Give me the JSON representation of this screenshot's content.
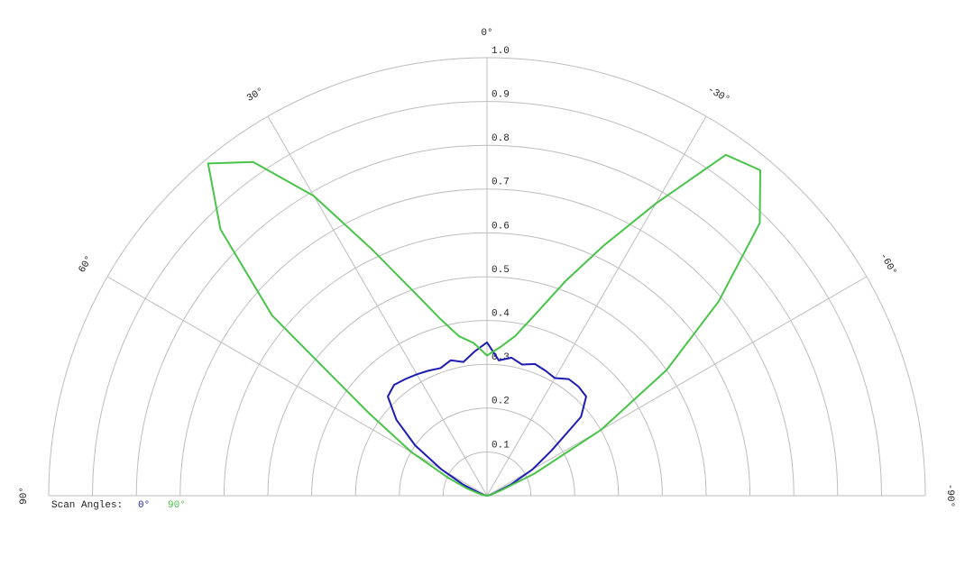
{
  "chart_data": {
    "type": "polar",
    "x": [
      -90,
      -85,
      -80,
      -75,
      -70,
      -65,
      -60,
      -55,
      -50,
      -45,
      -40,
      -35,
      -30,
      -25,
      -20,
      -15,
      -10,
      -5,
      0,
      5,
      10,
      15,
      20,
      25,
      30,
      35,
      40,
      45,
      50,
      55,
      60,
      65,
      70,
      75,
      80,
      85,
      90
    ],
    "series": [
      {
        "name": "0°",
        "color": "#1c1cb4",
        "values": [
          0,
          0,
          0.005,
          0.01,
          0.02,
          0.06,
          0.12,
          0.18,
          0.28,
          0.32,
          0.325,
          0.325,
          0.31,
          0.315,
          0.32,
          0.31,
          0.32,
          0.31,
          0.35,
          0.33,
          0.31,
          0.32,
          0.31,
          0.315,
          0.32,
          0.325,
          0.33,
          0.32,
          0.27,
          0.2,
          0.12,
          0.06,
          0.02,
          0.01,
          0.005,
          0,
          0
        ]
      },
      {
        "name": "90°",
        "color": "#48c448",
        "values": [
          0,
          0,
          0.005,
          0.01,
          0.03,
          0.12,
          0.3,
          0.5,
          0.69,
          0.88,
          0.97,
          0.95,
          0.77,
          0.63,
          0.52,
          0.43,
          0.37,
          0.34,
          0.32,
          0.35,
          0.37,
          0.42,
          0.5,
          0.62,
          0.79,
          0.93,
          0.99,
          0.86,
          0.64,
          0.33,
          0.2,
          0.1,
          0.05,
          0.02,
          0.01,
          0,
          0
        ]
      }
    ],
    "rlim": [
      0,
      1
    ],
    "rticks": [
      0.1,
      0.2,
      0.3,
      0.4,
      0.5,
      0.6,
      0.7,
      0.8,
      0.9,
      {
        "value": 1,
        "label": "1.0"
      }
    ],
    "xticks": [
      {
        "value": 90,
        "label": "90°"
      },
      {
        "value": 60,
        "label": "60°"
      },
      {
        "value": 30,
        "label": "30°"
      },
      {
        "value": 0,
        "label": "0°"
      },
      {
        "value": -30,
        "label": "-30°"
      },
      {
        "value": -60,
        "label": "-60°"
      },
      {
        "value": -90,
        "label": "-90°"
      }
    ],
    "legend_title": "Scan Angles:",
    "grid": true
  }
}
